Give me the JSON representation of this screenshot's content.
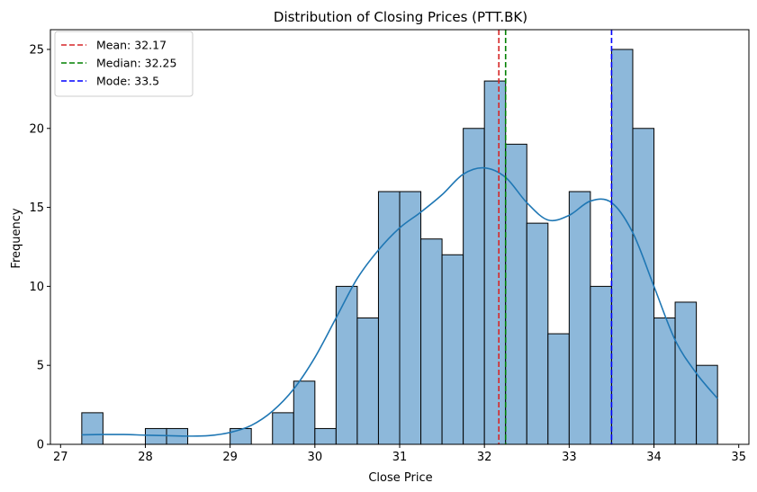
{
  "chart_data": {
    "type": "bar",
    "title": "Distribution of Closing Prices (PTT.BK)",
    "xlabel": "Close Price",
    "ylabel": "Frequency",
    "xlim": [
      26.88,
      35.12
    ],
    "ylim": [
      0,
      26.25
    ],
    "xticks": [
      27,
      28,
      29,
      30,
      31,
      32,
      33,
      34,
      35
    ],
    "yticks": [
      0,
      5,
      10,
      15,
      20,
      25
    ],
    "grid": false,
    "legend_position": "top-left",
    "bar_color": "#8db8da",
    "bar_edge_color": "#000000",
    "kde_color": "#1f77b4",
    "bins": {
      "start": 27.25,
      "width": 0.25,
      "counts": [
        2,
        0,
        0,
        1,
        1,
        0,
        0,
        1,
        0,
        2,
        4,
        1,
        10,
        8,
        16,
        16,
        13,
        12,
        20,
        23,
        19,
        14,
        7,
        16,
        10,
        25,
        20,
        8,
        9,
        5
      ]
    },
    "kde": {
      "x": [
        27.25,
        27.5,
        27.75,
        28.0,
        28.25,
        28.5,
        28.75,
        29.0,
        29.25,
        29.5,
        29.75,
        30.0,
        30.25,
        30.5,
        30.75,
        31.0,
        31.25,
        31.5,
        31.75,
        32.0,
        32.25,
        32.5,
        32.75,
        33.0,
        33.25,
        33.5,
        33.75,
        34.0,
        34.25,
        34.5,
        34.75
      ],
      "y": [
        0.6,
        0.62,
        0.62,
        0.58,
        0.55,
        0.52,
        0.55,
        0.75,
        1.2,
        2.1,
        3.5,
        5.5,
        8.0,
        10.5,
        12.3,
        13.7,
        14.7,
        15.8,
        17.1,
        17.5,
        16.9,
        15.3,
        14.2,
        14.5,
        15.4,
        15.3,
        13.4,
        10.0,
        6.6,
        4.5,
        2.9
      ]
    },
    "vlines": [
      {
        "label": "Mean: 32.17",
        "x": 32.17,
        "color": "#d62728"
      },
      {
        "label": "Median: 32.25",
        "x": 32.25,
        "color": "#008000"
      },
      {
        "label": "Mode: 33.5",
        "x": 33.5,
        "color": "#0000ff"
      }
    ]
  }
}
